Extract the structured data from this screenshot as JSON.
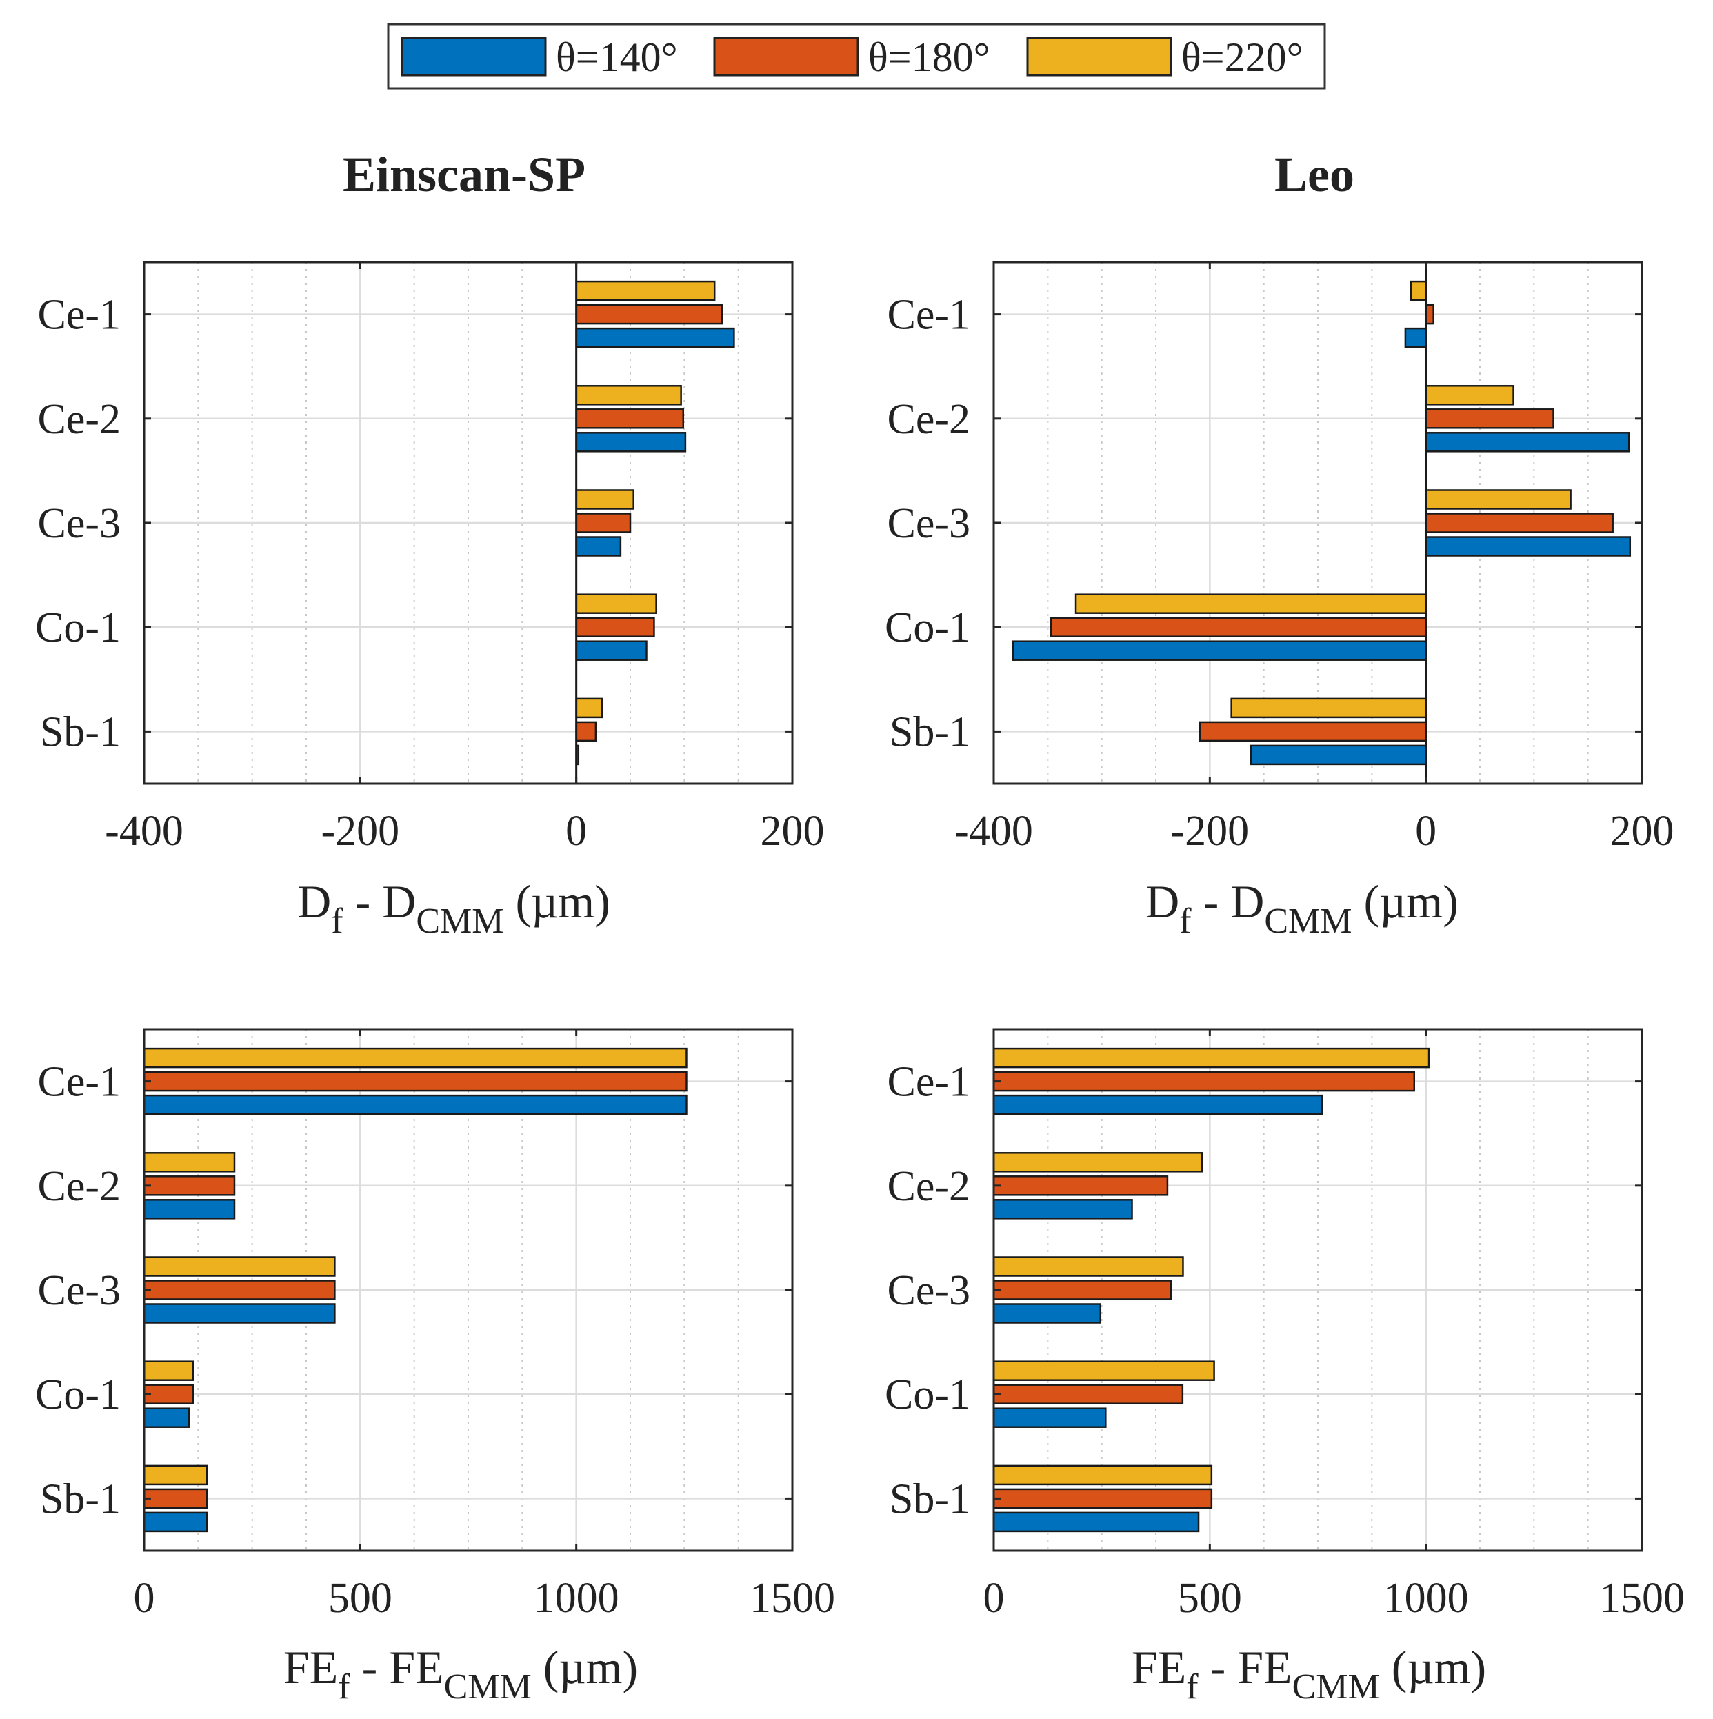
{
  "legend": [
    {
      "label": "θ=140°",
      "color": "#0072BD"
    },
    {
      "label": "θ=180°",
      "color": "#D95319"
    },
    {
      "label": "θ=220°",
      "color": "#EDB120"
    }
  ],
  "column_titles": [
    "Einscan-SP",
    "Leo"
  ],
  "axis_labels": {
    "diameter": {
      "main_a": "D",
      "sub_a": "f",
      "mid": " - D",
      "sub_b": "CMM",
      "unit": " (µm)"
    },
    "form_error": {
      "main_a": "FE",
      "sub_a": "f",
      "mid": " - FE",
      "sub_b": "CMM",
      "unit": " (µm)"
    }
  },
  "chart_data": [
    {
      "type": "bar",
      "orientation": "horizontal",
      "title": "Einscan-SP",
      "categories": [
        "Ce-1",
        "Ce-2",
        "Ce-3",
        "Co-1",
        "Sb-1"
      ],
      "series": [
        {
          "name": "θ=140°",
          "values": [
            146,
            101,
            41,
            65,
            2
          ]
        },
        {
          "name": "θ=180°",
          "values": [
            135,
            99,
            50,
            72,
            18
          ]
        },
        {
          "name": "θ=220°",
          "values": [
            128,
            97,
            53,
            74,
            24
          ]
        }
      ],
      "xlabel": "Df - DCMM (µm)",
      "xlim": [
        -400,
        200
      ],
      "xticks": [
        -400,
        -200,
        0,
        200
      ],
      "grid": true
    },
    {
      "type": "bar",
      "orientation": "horizontal",
      "title": "Leo",
      "categories": [
        "Ce-1",
        "Ce-2",
        "Ce-3",
        "Co-1",
        "Sb-1"
      ],
      "series": [
        {
          "name": "θ=140°",
          "values": [
            -19,
            188,
            189,
            -382,
            -162
          ]
        },
        {
          "name": "θ=180°",
          "values": [
            7,
            118,
            173,
            -347,
            -209
          ]
        },
        {
          "name": "θ=220°",
          "values": [
            -14,
            81,
            134,
            -324,
            -180
          ]
        }
      ],
      "xlabel": "Df - DCMM (µm)",
      "xlim": [
        -400,
        200
      ],
      "xticks": [
        -400,
        -200,
        0,
        200
      ],
      "grid": true
    },
    {
      "type": "bar",
      "orientation": "horizontal",
      "title": "Einscan-SP",
      "categories": [
        "Ce-1",
        "Ce-2",
        "Ce-3",
        "Co-1",
        "Sb-1"
      ],
      "series": [
        {
          "name": "θ=140°",
          "values": [
            1255,
            209,
            441,
            104,
            145
          ]
        },
        {
          "name": "θ=180°",
          "values": [
            1255,
            209,
            441,
            113,
            145
          ]
        },
        {
          "name": "θ=220°",
          "values": [
            1255,
            209,
            441,
            113,
            145
          ]
        }
      ],
      "xlabel": "FEf - FECMM (µm)",
      "xlim": [
        0,
        1500
      ],
      "xticks": [
        0,
        500,
        1000,
        1500
      ],
      "grid": true
    },
    {
      "type": "bar",
      "orientation": "horizontal",
      "title": "Leo",
      "categories": [
        "Ce-1",
        "Ce-2",
        "Ce-3",
        "Co-1",
        "Sb-1"
      ],
      "series": [
        {
          "name": "θ=140°",
          "values": [
            760,
            320,
            247,
            259,
            474
          ]
        },
        {
          "name": "θ=180°",
          "values": [
            973,
            402,
            410,
            437,
            504
          ]
        },
        {
          "name": "θ=220°",
          "values": [
            1007,
            482,
            438,
            510,
            504
          ]
        }
      ],
      "xlabel": "FEf - FECMM (µm)",
      "xlim": [
        0,
        1500
      ],
      "xticks": [
        0,
        500,
        1000,
        1500
      ],
      "grid": true
    }
  ]
}
